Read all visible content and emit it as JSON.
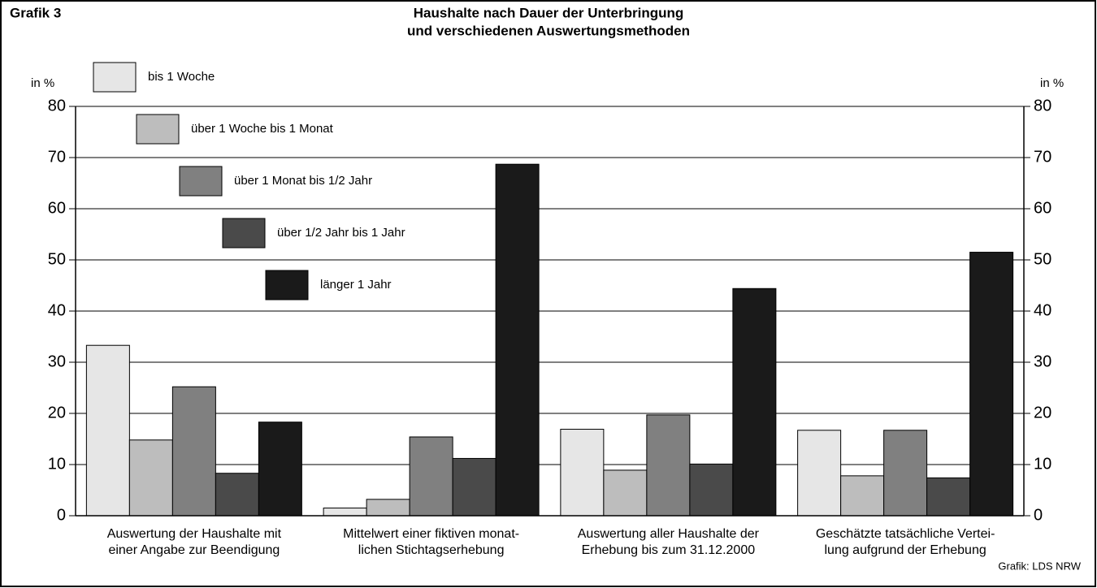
{
  "chart_data": {
    "type": "bar",
    "label": "Grafik 3",
    "title": [
      "Haushalte nach Dauer der Unterbringung",
      "und verschiedenen Auswertungsmethoden"
    ],
    "source": "Grafik: LDS NRW",
    "ylabel": "in %",
    "y2label": "in %",
    "categories": [
      [
        "Auswertung der Haushalte mit",
        "einer Angabe zur Beendigung"
      ],
      [
        "Mittelwert einer fiktiven monat-",
        "lichen Stichtagserhebung"
      ],
      [
        "Auswertung aller Haushalte der",
        "Erhebung bis zum 31.12.2000"
      ],
      [
        "Geschätzte tatsächliche Vertei-",
        "lung aufgrund der Erhebung"
      ]
    ],
    "series": [
      {
        "name": "bis 1 Woche",
        "color": "#e6e6e6",
        "values": [
          33.3,
          1.5,
          16.9,
          16.7
        ]
      },
      {
        "name": "über 1 Woche bis 1 Monat",
        "color": "#bdbdbd",
        "values": [
          14.8,
          3.2,
          8.9,
          7.8
        ]
      },
      {
        "name": "über 1 Monat bis 1/2 Jahr",
        "color": "#808080",
        "values": [
          25.2,
          15.4,
          19.7,
          16.7
        ]
      },
      {
        "name": "über 1/2 Jahr bis 1 Jahr",
        "color": "#4a4a4a",
        "values": [
          8.3,
          11.2,
          10.1,
          7.4
        ]
      },
      {
        "name": "länger 1 Jahr",
        "color": "#1a1a1a",
        "values": [
          18.3,
          68.7,
          44.4,
          51.5
        ]
      }
    ],
    "ylim": [
      0,
      80
    ],
    "yticks": [
      0,
      10,
      20,
      30,
      40,
      50,
      60,
      70,
      80
    ],
    "y2lim": [
      0,
      80
    ],
    "y2ticks": [
      0,
      10,
      20,
      30,
      40,
      50,
      60,
      70,
      80
    ],
    "grid": true
  }
}
